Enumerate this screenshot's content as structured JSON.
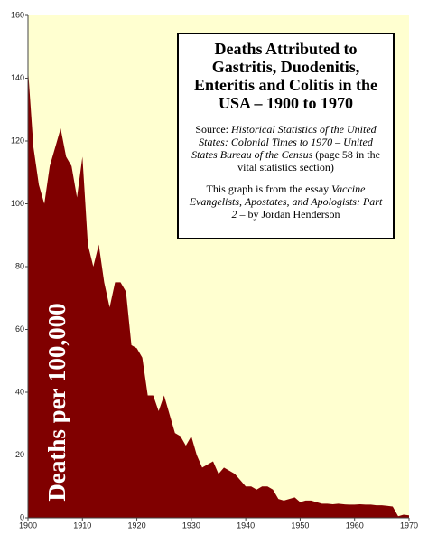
{
  "chart_data": {
    "type": "area",
    "title": "Deaths Attributed to Gastritis, Duodenitis, Enteritis and Colitis in the USA – 1900 to 1970",
    "source_label": "Source:",
    "source_title": "Historical Statistics of the United States: Colonial Times to 1970 – United States Bureau of the Census",
    "source_note": "(page 58 in the vital statistics section)",
    "essay_intro": "This graph is from the essay",
    "essay_title": "Vaccine Evangelists, Apostates, and Apologists: Part 2",
    "essay_author": "– by Jordan Henderson",
    "y_label": "Deaths per 100,000",
    "x": [
      1900,
      1901,
      1902,
      1903,
      1904,
      1905,
      1906,
      1907,
      1908,
      1909,
      1910,
      1911,
      1912,
      1913,
      1914,
      1915,
      1916,
      1917,
      1918,
      1919,
      1920,
      1921,
      1922,
      1923,
      1924,
      1925,
      1926,
      1927,
      1928,
      1929,
      1930,
      1931,
      1932,
      1933,
      1934,
      1935,
      1936,
      1937,
      1938,
      1939,
      1940,
      1941,
      1942,
      1943,
      1944,
      1945,
      1946,
      1947,
      1948,
      1949,
      1950,
      1951,
      1952,
      1953,
      1954,
      1955,
      1956,
      1957,
      1958,
      1959,
      1960,
      1961,
      1962,
      1963,
      1964,
      1965,
      1966,
      1967,
      1968,
      1969,
      1970
    ],
    "values": [
      143,
      118,
      106,
      100,
      112,
      118,
      124,
      115,
      112,
      102,
      115,
      87,
      80,
      87,
      75,
      67,
      75,
      75,
      72,
      55,
      54,
      51,
      39,
      39,
      34,
      39,
      33,
      27,
      26,
      23,
      26,
      20,
      16,
      17,
      18,
      14,
      16,
      15,
      14,
      12,
      10,
      10,
      9,
      10,
      10,
      9,
      6,
      5.5,
      6,
      6.5,
      5,
      5.5,
      5.5,
      5,
      4.5,
      4.5,
      4.3,
      4.5,
      4.3,
      4.2,
      4.2,
      4.3,
      4.2,
      4.2,
      4,
      4,
      3.8,
      3.6,
      0.5,
      1,
      0.8
    ],
    "color": "#800000",
    "background": "#ffffd0",
    "xlim": [
      1900,
      1970
    ],
    "xticks": [
      1900,
      1910,
      1920,
      1930,
      1940,
      1950,
      1960,
      1970
    ],
    "ylim": [
      0,
      160
    ],
    "yticks": [
      0,
      20,
      40,
      60,
      80,
      100,
      120,
      140,
      160
    ]
  }
}
